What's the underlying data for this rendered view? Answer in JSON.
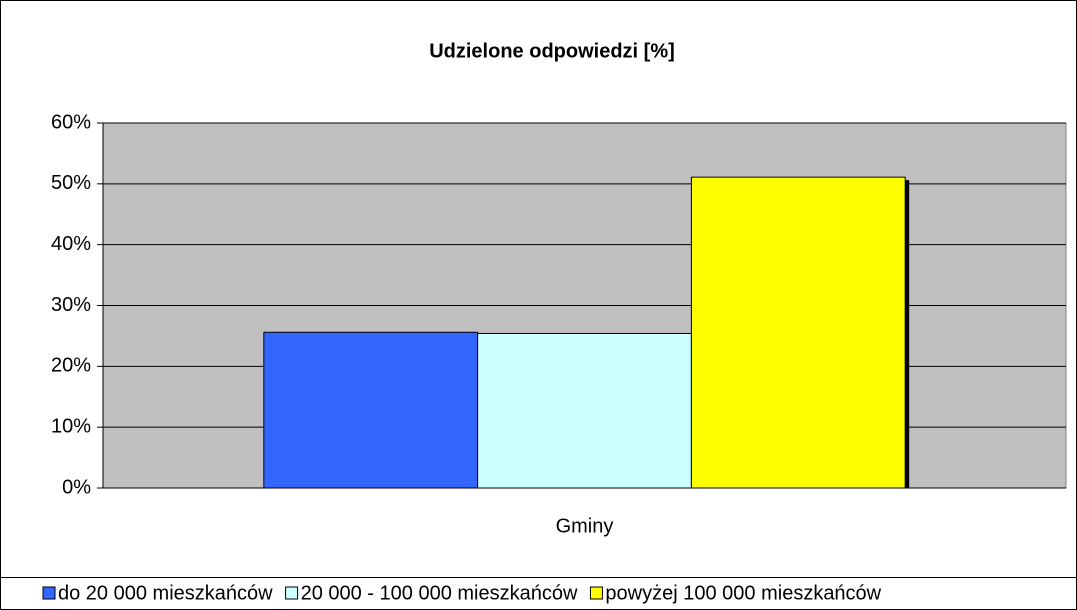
{
  "chart_data": {
    "type": "bar",
    "title": "Udzielone odpowiedzi  [%]",
    "categories": [
      "Gminy"
    ],
    "series": [
      {
        "name": "do 20 000 mieszkańców",
        "color": "#3366ff",
        "values": [
          25.6
        ]
      },
      {
        "name": "20 000 - 100 000 mieszkańców",
        "color": "#ccffff",
        "values": [
          25.4
        ]
      },
      {
        "name": "powyżej 100 000 mieszkańców",
        "color": "#ffff00",
        "values": [
          51.1
        ]
      }
    ],
    "ylim": [
      0,
      60
    ],
    "yticks": [
      {
        "value": 0,
        "label": "0%"
      },
      {
        "value": 10,
        "label": "10%"
      },
      {
        "value": 20,
        "label": "20%"
      },
      {
        "value": 30,
        "label": "30%"
      },
      {
        "value": 40,
        "label": "40%"
      },
      {
        "value": 50,
        "label": "50%"
      },
      {
        "value": 60,
        "label": "60%"
      }
    ],
    "grid": true,
    "legend": "bottom",
    "plot_background": "#c0c0c0"
  }
}
